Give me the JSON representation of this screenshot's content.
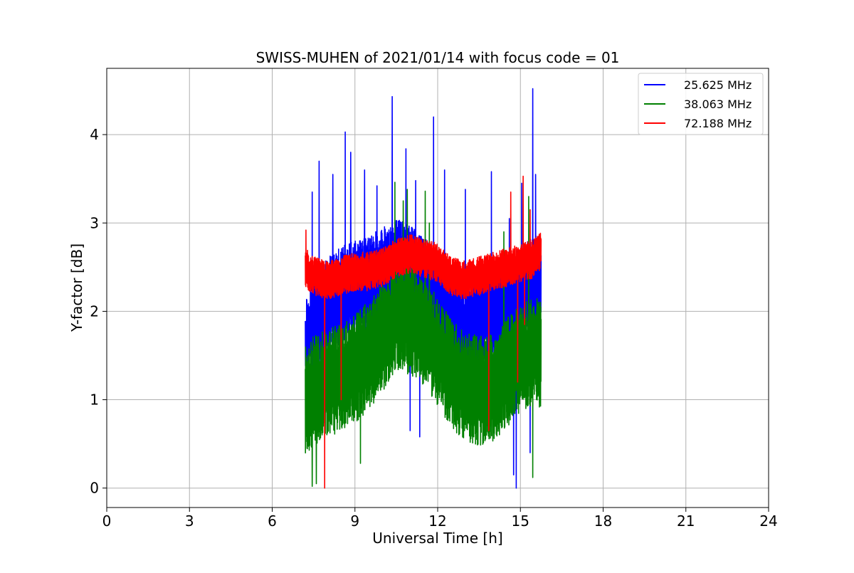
{
  "chart_data": {
    "type": "line",
    "title": "SWISS-MUHEN of 2021/01/14 with focus code = 01",
    "xlabel": "Universal Time [h]",
    "ylabel": "Y-factor [dB]",
    "xlim": [
      0,
      24
    ],
    "ylim": [
      -0.22,
      4.75
    ],
    "xticks": [
      0,
      3,
      6,
      9,
      12,
      15,
      18,
      21,
      24
    ],
    "xtick_labels": [
      "0",
      "3",
      "6",
      "9",
      "12",
      "15",
      "18",
      "21",
      "24"
    ],
    "yticks": [
      0,
      1,
      2,
      3,
      4
    ],
    "ytick_labels": [
      "0",
      "1",
      "2",
      "3",
      "4"
    ],
    "grid": true,
    "legend_position": "top-right",
    "x_range_covered": [
      7.2,
      15.75
    ],
    "series": [
      {
        "name": "25.625 MHz",
        "color": "#0000ff",
        "profile": [
          [
            7.2,
            1.6
          ],
          [
            7.5,
            1.85
          ],
          [
            8.0,
            2.05
          ],
          [
            8.5,
            2.2
          ],
          [
            9.0,
            2.25
          ],
          [
            9.5,
            2.3
          ],
          [
            10.0,
            2.4
          ],
          [
            10.5,
            2.5
          ],
          [
            11.0,
            2.45
          ],
          [
            11.5,
            2.3
          ],
          [
            12.0,
            2.05
          ],
          [
            12.5,
            1.85
          ],
          [
            13.0,
            1.8
          ],
          [
            13.5,
            1.9
          ],
          [
            14.0,
            2.0
          ],
          [
            14.5,
            2.1
          ],
          [
            15.0,
            2.2
          ],
          [
            15.5,
            2.3
          ],
          [
            15.75,
            2.2
          ]
        ],
        "spikes": [
          [
            7.45,
            3.35
          ],
          [
            7.7,
            3.7
          ],
          [
            8.2,
            3.55
          ],
          [
            8.65,
            4.03
          ],
          [
            8.85,
            3.8
          ],
          [
            9.35,
            3.6
          ],
          [
            9.8,
            3.42
          ],
          [
            10.35,
            4.43
          ],
          [
            10.85,
            3.84
          ],
          [
            11.2,
            3.48
          ],
          [
            11.85,
            4.2
          ],
          [
            12.25,
            3.6
          ],
          [
            13.0,
            3.38
          ],
          [
            13.95,
            3.58
          ],
          [
            14.6,
            3.05
          ],
          [
            15.05,
            3.45
          ],
          [
            15.45,
            4.52
          ],
          [
            15.55,
            3.55
          ]
        ],
        "dips": [
          [
            11.0,
            0.65
          ],
          [
            11.35,
            0.58
          ],
          [
            14.85,
            0.0
          ],
          [
            14.75,
            0.15
          ],
          [
            15.35,
            0.4
          ]
        ]
      },
      {
        "name": "38.063 MHz",
        "color": "#008000",
        "profile": [
          [
            7.2,
            1.0
          ],
          [
            7.5,
            1.1
          ],
          [
            8.0,
            1.2
          ],
          [
            8.5,
            1.25
          ],
          [
            9.0,
            1.35
          ],
          [
            9.5,
            1.5
          ],
          [
            10.0,
            1.7
          ],
          [
            10.5,
            1.95
          ],
          [
            11.0,
            1.9
          ],
          [
            11.5,
            1.75
          ],
          [
            12.0,
            1.55
          ],
          [
            12.5,
            1.3
          ],
          [
            13.0,
            1.15
          ],
          [
            13.5,
            1.1
          ],
          [
            14.0,
            1.15
          ],
          [
            14.5,
            1.3
          ],
          [
            15.0,
            1.45
          ],
          [
            15.5,
            1.55
          ],
          [
            15.75,
            1.5
          ]
        ],
        "spikes": [
          [
            10.45,
            3.46
          ],
          [
            10.75,
            3.25
          ],
          [
            10.9,
            3.38
          ],
          [
            11.55,
            3.36
          ],
          [
            11.7,
            3.0
          ],
          [
            15.3,
            3.3
          ],
          [
            15.45,
            3.45
          ],
          [
            14.4,
            2.9
          ]
        ],
        "dips": [
          [
            7.45,
            0.02
          ],
          [
            7.6,
            0.05
          ],
          [
            15.45,
            0.12
          ],
          [
            9.2,
            0.28
          ]
        ]
      },
      {
        "name": "72.188 MHz",
        "color": "#ff0000",
        "profile": [
          [
            7.2,
            2.5
          ],
          [
            7.5,
            2.4
          ],
          [
            8.0,
            2.35
          ],
          [
            8.5,
            2.4
          ],
          [
            9.0,
            2.45
          ],
          [
            9.5,
            2.45
          ],
          [
            10.0,
            2.5
          ],
          [
            10.5,
            2.6
          ],
          [
            11.0,
            2.65
          ],
          [
            11.5,
            2.6
          ],
          [
            12.0,
            2.55
          ],
          [
            12.3,
            2.45
          ],
          [
            12.5,
            2.4
          ],
          [
            13.0,
            2.35
          ],
          [
            13.5,
            2.4
          ],
          [
            14.0,
            2.45
          ],
          [
            14.5,
            2.5
          ],
          [
            15.0,
            2.55
          ],
          [
            15.5,
            2.6
          ],
          [
            15.75,
            2.7
          ]
        ],
        "spikes": [
          [
            7.22,
            2.92
          ],
          [
            14.65,
            3.35
          ],
          [
            15.1,
            3.53
          ],
          [
            15.35,
            3.15
          ]
        ],
        "dips": [
          [
            7.9,
            0.0
          ],
          [
            8.5,
            1.0
          ],
          [
            13.85,
            0.65
          ],
          [
            14.9,
            1.2
          ],
          [
            15.15,
            1.85
          ]
        ]
      }
    ]
  }
}
